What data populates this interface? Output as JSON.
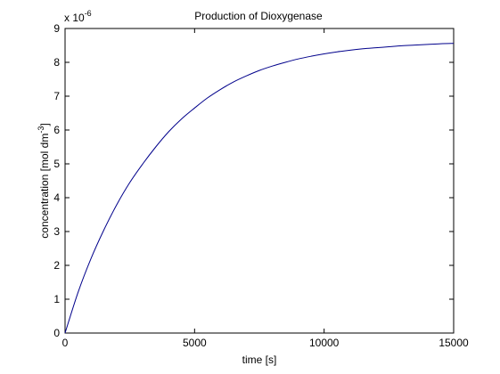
{
  "chart_data": {
    "type": "line",
    "title": "Production of Dioxygenase",
    "xlabel": "time [s]",
    "ylabel": {
      "prefix": "concentration [mol dm",
      "sup": "-3",
      "suffix": "]"
    },
    "multiplier": {
      "base": "x 10",
      "exp": "-6"
    },
    "xlim": [
      0,
      15000
    ],
    "ylim": [
      0,
      9
    ],
    "x_ticks": [
      0,
      5000,
      10000,
      15000
    ],
    "y_ticks": [
      0,
      1,
      2,
      3,
      4,
      5,
      6,
      7,
      8,
      9
    ],
    "y_scale_factor": 1e-06,
    "grid": false,
    "series": [
      {
        "color": "#00008b",
        "x": [
          0,
          500,
          1000,
          1500,
          2000,
          2500,
          3000,
          3500,
          4000,
          4500,
          5000,
          5500,
          6000,
          6500,
          7000,
          7500,
          8000,
          8500,
          9000,
          9500,
          10000,
          10500,
          11000,
          11500,
          12000,
          12500,
          13000,
          13500,
          14000,
          14500,
          15000
        ],
        "y": [
          0,
          1.2,
          2.2,
          3.05,
          3.8,
          4.45,
          5.0,
          5.5,
          5.95,
          6.33,
          6.65,
          6.95,
          7.2,
          7.42,
          7.6,
          7.76,
          7.89,
          8.0,
          8.1,
          8.18,
          8.25,
          8.31,
          8.36,
          8.4,
          8.43,
          8.46,
          8.49,
          8.51,
          8.53,
          8.55,
          8.56
        ]
      }
    ]
  }
}
